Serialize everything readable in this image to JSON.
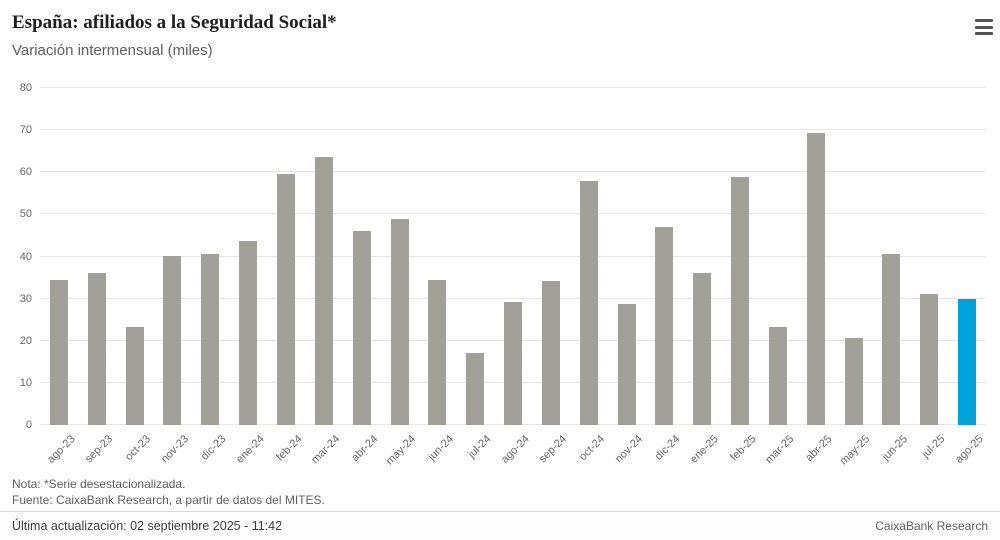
{
  "header": {
    "title": "España: afiliados a la Seguridad Social*",
    "subtitle": "Variación intermensual (miles)"
  },
  "chart_data": {
    "type": "bar",
    "title": "España: afiliados a la Seguridad Social*",
    "subtitle": "Variación intermensual (miles)",
    "categories": [
      "ago-23",
      "sep-23",
      "oct-23",
      "nov-23",
      "dic-23",
      "ene-24",
      "feb-24",
      "mar-24",
      "abr-24",
      "may-24",
      "jun-24",
      "jul-24",
      "ago-24",
      "sep-24",
      "oct-24",
      "nov-24",
      "dic-24",
      "ene-25",
      "feb-25",
      "mar-25",
      "abr-25",
      "may-25",
      "jun-25",
      "jul-25",
      "ago-25"
    ],
    "values": [
      34.5,
      36.0,
      23.2,
      40.2,
      40.7,
      43.8,
      59.6,
      63.6,
      46.1,
      49.0,
      34.4,
      17.1,
      29.3,
      34.1,
      58.0,
      28.7,
      46.9,
      36.0,
      58.9,
      23.2,
      69.3,
      20.7,
      40.5,
      31.2,
      29.9
    ],
    "xlabel": "",
    "ylabel": "",
    "ylim": [
      0,
      80
    ],
    "ytick_step": 10,
    "grid": true,
    "legend": "none",
    "bar_color": "#a1a19a",
    "highlight_color": "#00a2dc",
    "highlight_index": 24
  },
  "footer": {
    "note": "Nota: *Serie desestacionalizada.",
    "source": "Fuente: CaixaBank Research, a partir de datos del MITES.",
    "updated": "Última actualización: 02 septiembre 2025 - 11:42",
    "brand": "CaixaBank Research"
  }
}
